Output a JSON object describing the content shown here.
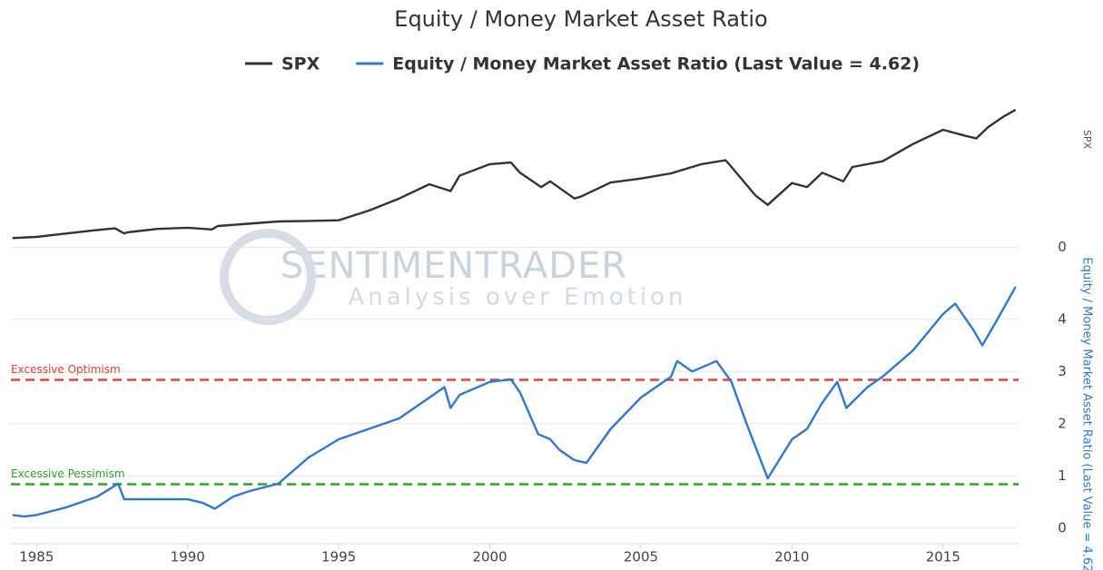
{
  "chart_data": [
    {
      "type": "line",
      "title": "Equity / Money Market Asset Ratio",
      "ylabel": "SPX",
      "watermark": "SENTIMENTRADER",
      "watermark_subtitle": "Analysis over Emotion",
      "xlim": [
        1984.15,
        2017.5
      ],
      "ylim": [
        -200,
        2700
      ],
      "yticks": [
        0
      ],
      "grid": true,
      "x": [
        1984.2,
        1985,
        1986,
        1987,
        1987.6,
        1987.9,
        1988,
        1989,
        1990,
        1990.8,
        1991,
        1992,
        1993,
        1994,
        1995,
        1996,
        1997,
        1998,
        1998.7,
        1999,
        2000,
        2000.7,
        2001,
        2001.7,
        2002,
        2002.8,
        2003,
        2004,
        2005,
        2006,
        2007,
        2007.8,
        2008,
        2008.8,
        2009.2,
        2010,
        2010.5,
        2011,
        2011.7,
        2012,
        2013,
        2014,
        2015,
        2015.7,
        2016.1,
        2016.5,
        2017,
        2017.4
      ],
      "series": [
        {
          "name": "SPX",
          "color": "#333333",
          "values": [
            160,
            180,
            240,
            300,
            330,
            240,
            260,
            320,
            340,
            310,
            370,
            410,
            450,
            460,
            470,
            640,
            850,
            1100,
            980,
            1250,
            1450,
            1480,
            1300,
            1050,
            1150,
            850,
            880,
            1130,
            1200,
            1290,
            1450,
            1520,
            1400,
            900,
            740,
            1120,
            1050,
            1300,
            1150,
            1400,
            1500,
            1800,
            2050,
            1950,
            1900,
            2100,
            2280,
            2400
          ]
        }
      ]
    },
    {
      "type": "line",
      "ylabel": "Equity / Money Market Asset Ratio (Last Value = 4.62)",
      "xlim": [
        1984.15,
        2017.5
      ],
      "ylim": [
        -0.3,
        4.9
      ],
      "yticks": [
        0,
        1,
        2,
        3,
        4
      ],
      "grid": true,
      "xticks": [
        1985,
        1990,
        1995,
        2000,
        2005,
        2010,
        2015
      ],
      "reference_lines": [
        {
          "label": "Excessive Optimism",
          "value": 2.84,
          "color": "#e8403a"
        },
        {
          "label": "Excessive Pessimism",
          "value": 0.84,
          "color": "#2ea02e"
        }
      ],
      "x": [
        1984.2,
        1984.6,
        1985,
        1986,
        1987,
        1987.7,
        1987.9,
        1988,
        1989,
        1990,
        1990.5,
        1990.9,
        1991.5,
        1992,
        1993,
        1993.5,
        1994,
        1995,
        1996,
        1997,
        1998,
        1998.5,
        1998.7,
        1999,
        2000,
        2000.7,
        2001,
        2001.6,
        2002,
        2002.3,
        2002.8,
        2003.2,
        2004,
        2005,
        2006,
        2006.2,
        2006.7,
        2007.5,
        2008,
        2008.5,
        2009.2,
        2010,
        2010.5,
        2011,
        2011.5,
        2011.8,
        2012.5,
        2013,
        2014,
        2015,
        2015.4,
        2016,
        2016.3,
        2016.8,
        2017.4
      ],
      "series": [
        {
          "name": "Equity / Money Market Asset Ratio (Last Value = 4.62)",
          "color": "#2f78d0",
          "values": [
            0.25,
            0.22,
            0.25,
            0.4,
            0.6,
            0.85,
            0.55,
            0.55,
            0.55,
            0.55,
            0.48,
            0.37,
            0.6,
            0.7,
            0.85,
            1.1,
            1.35,
            1.7,
            1.9,
            2.1,
            2.5,
            2.7,
            2.3,
            2.55,
            2.8,
            2.85,
            2.6,
            1.8,
            1.7,
            1.5,
            1.3,
            1.25,
            1.9,
            2.5,
            2.9,
            3.2,
            3.0,
            3.2,
            2.8,
            2.0,
            0.95,
            1.7,
            1.9,
            2.4,
            2.8,
            2.3,
            2.7,
            2.9,
            3.4,
            4.1,
            4.3,
            3.8,
            3.5,
            4.0,
            4.62
          ]
        }
      ]
    }
  ]
}
